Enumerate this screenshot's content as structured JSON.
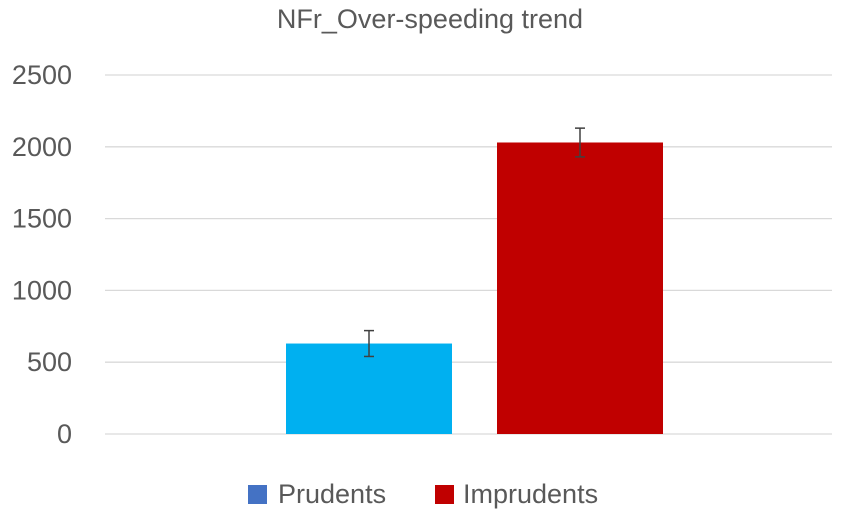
{
  "chart_data": {
    "type": "bar",
    "title": "NFr_Over-speeding trend",
    "xlabel": "",
    "ylabel": "",
    "ylim": [
      0,
      2500
    ],
    "yticks": [
      0,
      500,
      1000,
      1500,
      2000,
      2500
    ],
    "yticks_labels": [
      "0",
      "500",
      "1000",
      "1500",
      "2000",
      "2500"
    ],
    "grid": true,
    "legend_position": "bottom",
    "series": [
      {
        "name": "Prudents",
        "value": 630,
        "error": 90,
        "color": "#00b0f0",
        "legend_color": "#4472c4"
      },
      {
        "name": "Imprudents",
        "value": 2030,
        "error": 100,
        "color": "#c00000",
        "legend_color": "#c00000"
      }
    ]
  }
}
